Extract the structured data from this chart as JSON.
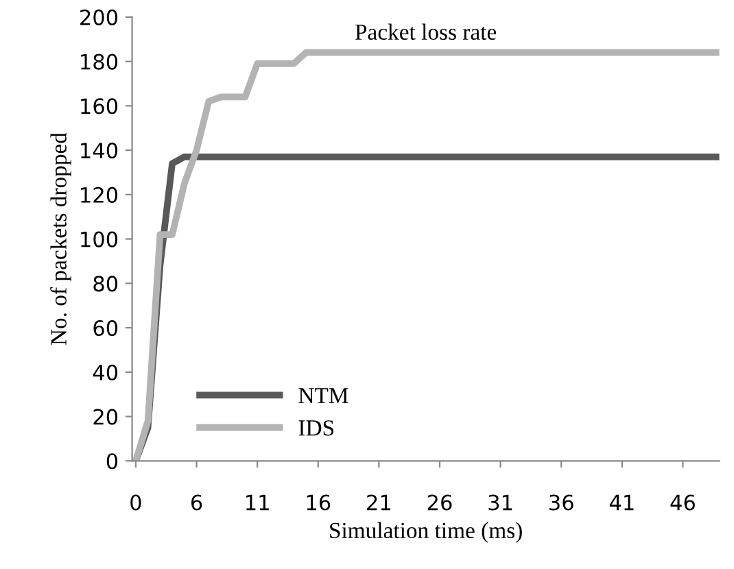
{
  "chart_data": {
    "type": "line",
    "title": "Packet loss rate",
    "xlabel": "Simulation time (ms)",
    "ylabel": "No. of packets dropped",
    "categories": [
      "0",
      null,
      null,
      null,
      null,
      "6",
      null,
      null,
      null,
      null,
      "11",
      null,
      null,
      null,
      null,
      "16",
      null,
      null,
      null,
      null,
      "21",
      null,
      null,
      null,
      null,
      "26",
      null,
      null,
      null,
      null,
      "31",
      null,
      null,
      null,
      null,
      "36",
      null,
      null,
      null,
      null,
      "41",
      null,
      null,
      null,
      null,
      "46",
      null,
      null,
      null
    ],
    "series": [
      {
        "name": "NTM",
        "color": "#595959",
        "values": [
          0,
          15,
          88,
          134,
          137,
          137,
          137,
          137,
          137,
          137,
          137,
          137,
          137,
          137,
          137,
          137,
          137,
          137,
          137,
          137,
          137,
          137,
          137,
          137,
          137,
          137,
          137,
          137,
          137,
          137,
          137,
          137,
          137,
          137,
          137,
          137,
          137,
          137,
          137,
          137,
          137,
          137,
          137,
          137,
          137,
          137,
          137,
          137,
          137
        ]
      },
      {
        "name": "IDS",
        "color": "#b3b3b3",
        "values": [
          0,
          18,
          102,
          102,
          125,
          140,
          162,
          164,
          164,
          164,
          179,
          179,
          179,
          179,
          184,
          184,
          184,
          184,
          184,
          184,
          184,
          184,
          184,
          184,
          184,
          184,
          184,
          184,
          184,
          184,
          184,
          184,
          184,
          184,
          184,
          184,
          184,
          184,
          184,
          184,
          184,
          184,
          184,
          184,
          184,
          184,
          184,
          184,
          184
        ]
      }
    ],
    "ylim": [
      0,
      200
    ],
    "yticks": [
      0,
      20,
      40,
      60,
      80,
      100,
      120,
      140,
      160,
      180,
      200
    ],
    "grid": false,
    "legend": "bottom left",
    "marker": "none",
    "line_style": "solid"
  }
}
